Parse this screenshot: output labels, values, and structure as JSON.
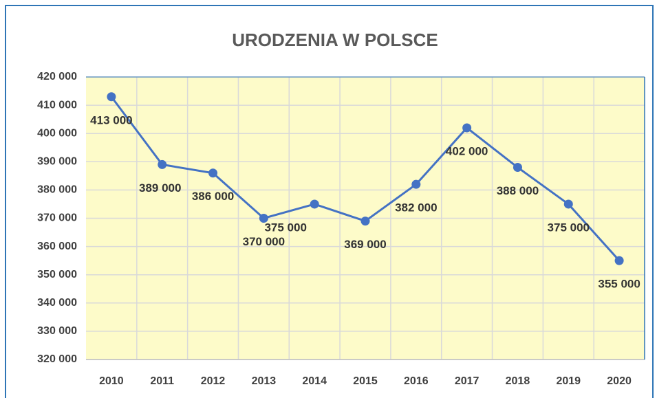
{
  "chart_data": {
    "type": "line",
    "title": "URODZENIA W POLSCE",
    "categories": [
      "2010",
      "2011",
      "2012",
      "2013",
      "2014",
      "2015",
      "2016",
      "2017",
      "2018",
      "2019",
      "2020"
    ],
    "series": [
      {
        "name": "Urodzenia",
        "color": "#4472c4",
        "values": [
          413000,
          389000,
          386000,
          370000,
          375000,
          369000,
          382000,
          402000,
          388000,
          375000,
          355000
        ],
        "value_labels": [
          "413 000",
          "389 000",
          "386 000",
          "370 000",
          "375 000",
          "369 000",
          "382 000",
          "402 000",
          "388 000",
          "375 000",
          "355 000"
        ]
      }
    ],
    "ylim": [
      320000,
      420000
    ],
    "yticks": [
      {
        "value": 320000,
        "label": "320 000"
      },
      {
        "value": 330000,
        "label": "330 000"
      },
      {
        "value": 340000,
        "label": "340 000"
      },
      {
        "value": 350000,
        "label": "350 000"
      },
      {
        "value": 360000,
        "label": "360 000"
      },
      {
        "value": 370000,
        "label": "370 000"
      },
      {
        "value": 380000,
        "label": "380 000"
      },
      {
        "value": 390000,
        "label": "390 000"
      },
      {
        "value": 400000,
        "label": "400 000"
      },
      {
        "value": 410000,
        "label": "410 000"
      },
      {
        "value": 420000,
        "label": "420 000"
      }
    ],
    "grid": true
  }
}
